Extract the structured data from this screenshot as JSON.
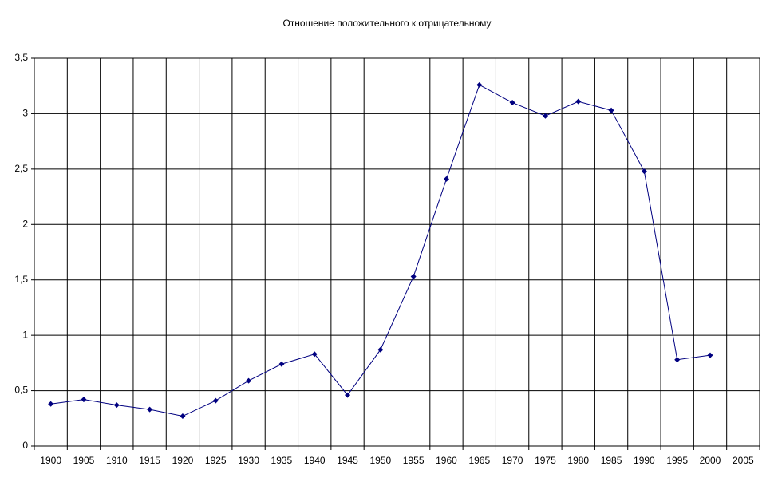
{
  "chart_data": {
    "type": "line",
    "title": "Отношение положительного к отрицательному",
    "categories": [
      "1900",
      "1905",
      "1910",
      "1915",
      "1920",
      "1925",
      "1930",
      "1935",
      "1940",
      "1945",
      "1950",
      "1955",
      "1960",
      "1965",
      "1970",
      "1975",
      "1980",
      "1985",
      "1990",
      "1995",
      "2000",
      "2005"
    ],
    "values": [
      0.38,
      0.42,
      0.37,
      0.33,
      0.27,
      0.41,
      0.59,
      0.74,
      0.83,
      0.46,
      0.87,
      1.53,
      2.41,
      3.26,
      3.1,
      2.98,
      3.11,
      3.03,
      2.48,
      0.78,
      0.82,
      null
    ],
    "color": "#000080",
    "ylim": [
      0,
      3.5
    ],
    "yticks": [
      0,
      {
        "value": 0.5,
        "label": "0,5"
      },
      1,
      {
        "value": 1.5,
        "label": "1,5"
      },
      2,
      {
        "value": 2.5,
        "label": "2,5"
      },
      3,
      {
        "value": 3.5,
        "label": "3,5"
      }
    ],
    "grid": true
  }
}
